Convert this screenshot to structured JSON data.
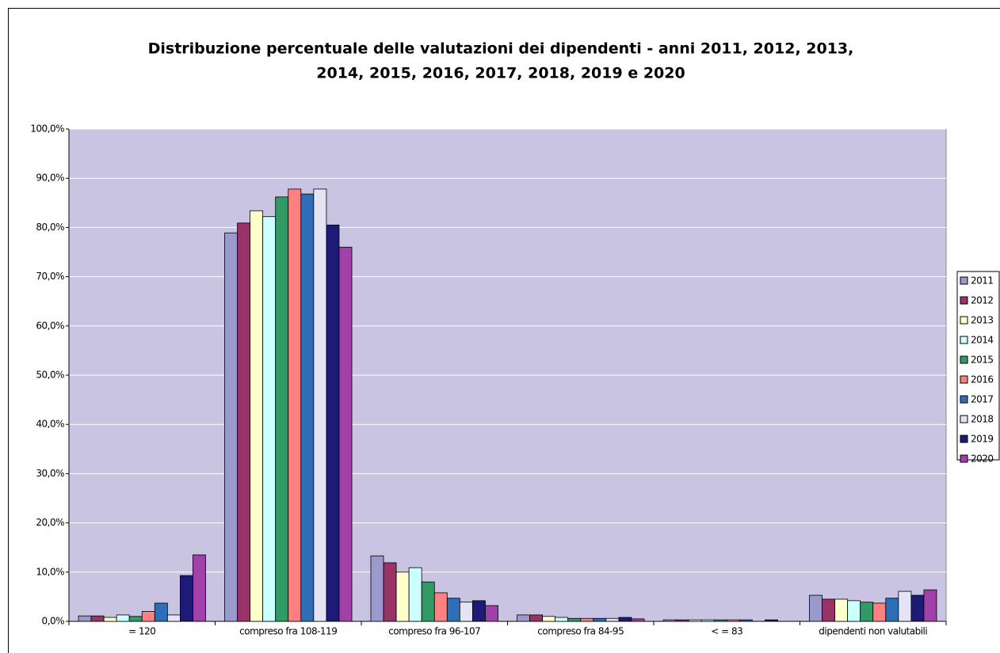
{
  "chart_data": {
    "type": "bar",
    "title": [
      "Distribuzione percentuale delle valutazioni dei dipendenti - anni 2011, 2012, 2013,",
      "2014, 2015, 2016, 2017, 2018, 2019 e 2020"
    ],
    "categories": [
      "= 120",
      "compreso fra 108-119",
      "compreso fra 96-107",
      "compreso fra 84-95",
      "< = 83",
      "dipendenti non valutabili"
    ],
    "series": [
      {
        "name": "2011",
        "color": "#9999cc",
        "values": [
          1.1,
          78.9,
          13.3,
          1.3,
          0.3,
          5.3
        ]
      },
      {
        "name": "2012",
        "color": "#993366",
        "values": [
          1.1,
          80.9,
          11.9,
          1.3,
          0.3,
          4.5
        ]
      },
      {
        "name": "2013",
        "color": "#ffffcc",
        "values": [
          0.8,
          83.4,
          10.0,
          1.0,
          0.3,
          4.5
        ]
      },
      {
        "name": "2014",
        "color": "#ccffff",
        "values": [
          1.3,
          82.2,
          10.9,
          0.8,
          0.3,
          4.2
        ]
      },
      {
        "name": "2015",
        "color": "#339966",
        "values": [
          1.0,
          86.2,
          8.0,
          0.6,
          0.3,
          3.9
        ]
      },
      {
        "name": "2016",
        "color": "#ff8080",
        "values": [
          2.0,
          87.8,
          5.8,
          0.6,
          0.3,
          3.7
        ]
      },
      {
        "name": "2017",
        "color": "#2e6db8",
        "values": [
          3.7,
          86.8,
          4.7,
          0.6,
          0.3,
          4.7
        ]
      },
      {
        "name": "2018",
        "color": "#e4e4f4",
        "values": [
          1.3,
          87.8,
          3.9,
          0.6,
          0,
          6.1
        ]
      },
      {
        "name": "2019",
        "color": "#1c1c78",
        "values": [
          9.3,
          80.5,
          4.2,
          0.8,
          0.3,
          5.3
        ]
      },
      {
        "name": "2020",
        "color": "#a040a8",
        "values": [
          13.5,
          76.0,
          3.2,
          0.5,
          0,
          6.4
        ]
      }
    ],
    "ylim": [
      0,
      100
    ],
    "yticks": [
      {
        "value": 0,
        "label": "0,0%"
      },
      {
        "value": 10,
        "label": "10,0%"
      },
      {
        "value": 20,
        "label": "20,0%"
      },
      {
        "value": 30,
        "label": "30,0%"
      },
      {
        "value": 40,
        "label": "40,0%"
      },
      {
        "value": 50,
        "label": "50,0%"
      },
      {
        "value": 60,
        "label": "60,0%"
      },
      {
        "value": 70,
        "label": "70,0%"
      },
      {
        "value": 80,
        "label": "80,0%"
      },
      {
        "value": 90,
        "label": "90,0%"
      },
      {
        "value": 100,
        "label": "100,0%"
      }
    ],
    "grid": true,
    "legend": "right"
  }
}
